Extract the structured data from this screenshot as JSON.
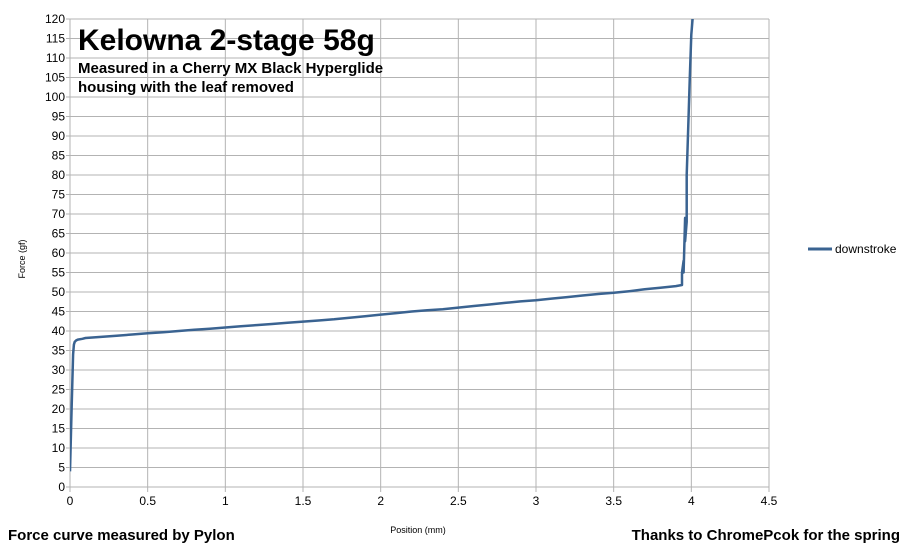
{
  "chart_data": {
    "type": "line",
    "title": "Kelowna 2-stage 58g",
    "subtitle_lines": [
      "Measured in a Cherry MX Black Hyperglide",
      "housing with the leaf removed"
    ],
    "xlabel": "Position (mm)",
    "ylabel": "Force (gf)",
    "xlim": [
      0,
      4.5
    ],
    "ylim": [
      0,
      120
    ],
    "x_ticks": [
      "0",
      "0.5",
      "1",
      "1.5",
      "2",
      "2.5",
      "3",
      "3.5",
      "4",
      "4.5"
    ],
    "y_ticks": [
      "0",
      "5",
      "10",
      "15",
      "20",
      "25",
      "30",
      "35",
      "40",
      "45",
      "50",
      "55",
      "60",
      "65",
      "70",
      "75",
      "80",
      "85",
      "90",
      "95",
      "100",
      "105",
      "110",
      "115",
      "120"
    ],
    "grid": true,
    "legend_position": "right",
    "series": [
      {
        "name": "downstroke",
        "color": "#3a6391",
        "x": [
          0.0,
          0.01,
          0.02,
          0.025,
          0.03,
          0.04,
          0.05,
          0.08,
          0.1,
          0.2,
          0.3,
          0.4,
          0.5,
          0.6,
          0.7,
          0.8,
          0.9,
          1.0,
          1.1,
          1.2,
          1.3,
          1.4,
          1.5,
          1.6,
          1.7,
          1.8,
          1.9,
          2.0,
          2.1,
          2.2,
          2.3,
          2.4,
          2.5,
          2.6,
          2.7,
          2.8,
          2.9,
          3.0,
          3.1,
          3.2,
          3.3,
          3.4,
          3.5,
          3.6,
          3.7,
          3.8,
          3.9,
          3.94,
          3.94,
          3.95,
          3.95,
          3.96,
          3.96,
          3.97,
          3.97,
          3.98,
          3.99,
          4.0,
          4.01
        ],
        "y": [
          4,
          20,
          34,
          36.5,
          37.2,
          37.6,
          37.8,
          38.0,
          38.2,
          38.5,
          38.8,
          39.1,
          39.4,
          39.7,
          40.0,
          40.3,
          40.6,
          40.9,
          41.2,
          41.5,
          41.8,
          42.1,
          42.4,
          42.7,
          43.0,
          43.4,
          43.8,
          44.2,
          44.6,
          45.0,
          45.3,
          45.6,
          46.0,
          46.4,
          46.8,
          47.2,
          47.6,
          47.9,
          48.3,
          48.7,
          49.1,
          49.5,
          49.8,
          50.2,
          50.7,
          51.1,
          51.5,
          51.8,
          55,
          58,
          55,
          69,
          63,
          68,
          80,
          92,
          105,
          116,
          121
        ]
      }
    ]
  },
  "footer": {
    "left": "Force curve measured by Pylon",
    "right": "Thanks to ChromePcok for the spring"
  }
}
